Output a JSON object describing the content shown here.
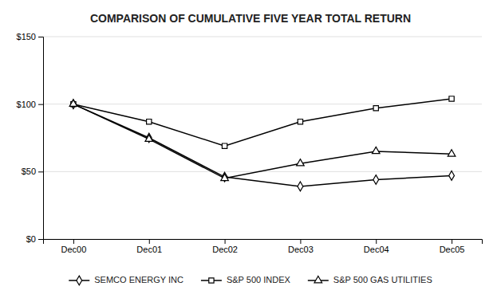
{
  "chart_data": {
    "type": "line",
    "title": "COMPARISON OF CUMULATIVE FIVE YEAR TOTAL RETURN",
    "categories": [
      "Dec00",
      "Dec01",
      "Dec02",
      "Dec03",
      "Dec04",
      "Dec05"
    ],
    "series": [
      {
        "name": "SEMCO ENERGY INC",
        "color": "#000000",
        "marker": "diamond",
        "values": [
          100,
          75,
          46,
          39,
          44,
          47
        ]
      },
      {
        "name": "S&P 500 INDEX",
        "color": "#000000",
        "marker": "square",
        "values": [
          100,
          87,
          69,
          87,
          97,
          104
        ]
      },
      {
        "name": "S&P 500 GAS UTILITIES",
        "color": "#000000",
        "marker": "triangle",
        "values": [
          100,
          74,
          45,
          56,
          65,
          63
        ]
      }
    ],
    "ylim": [
      0,
      150
    ],
    "yticks": [
      {
        "value": 0,
        "label": "$0"
      },
      {
        "value": 50,
        "label": "$50"
      },
      {
        "value": 100,
        "label": "$100"
      },
      {
        "value": 150,
        "label": "$150"
      }
    ],
    "grid": true,
    "legend": "bottom"
  }
}
